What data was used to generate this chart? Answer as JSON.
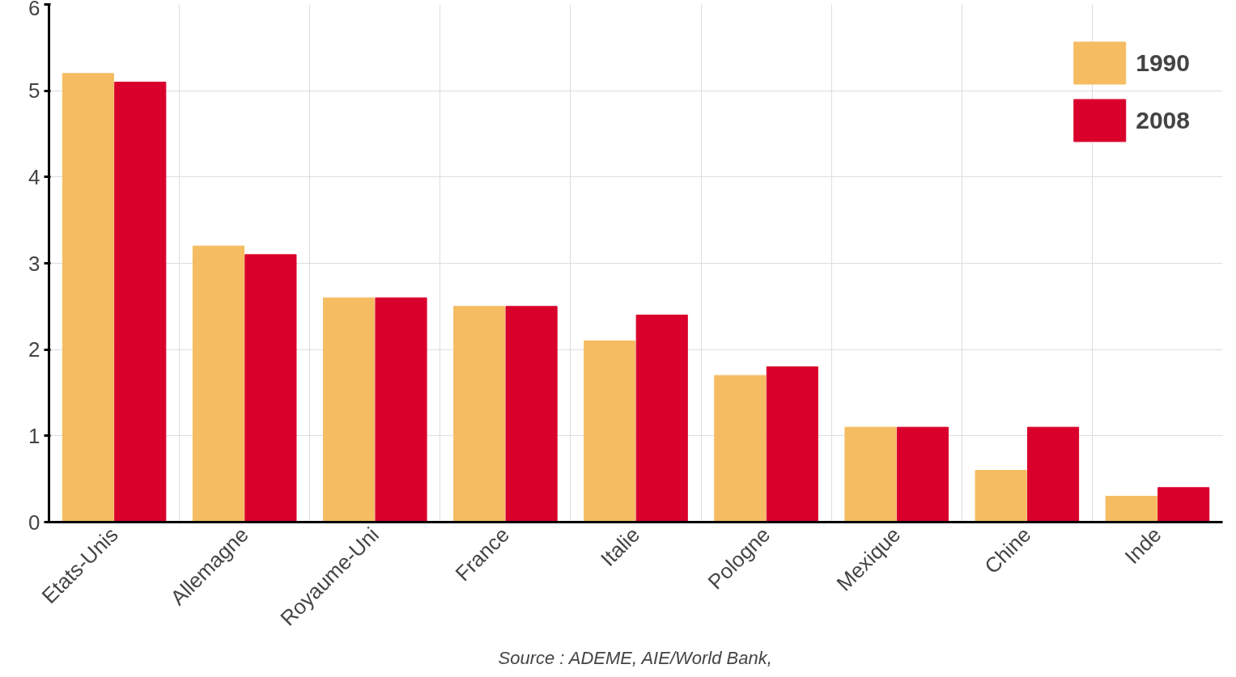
{
  "chart_data": {
    "type": "bar",
    "categories": [
      "Etats-Unis",
      "Allemagne",
      "Royaume-Uni",
      "France",
      "Italie",
      "Pologne",
      "Mexique",
      "Chine",
      "Inde"
    ],
    "series": [
      {
        "name": "1990",
        "color": "#f5bc62",
        "values": [
          5.2,
          3.2,
          2.6,
          2.5,
          2.1,
          1.7,
          1.1,
          0.6,
          0.3
        ]
      },
      {
        "name": "2008",
        "color": "#d9002b",
        "values": [
          5.1,
          3.1,
          2.6,
          2.5,
          2.4,
          1.8,
          1.1,
          1.1,
          0.4
        ]
      }
    ],
    "ylim": [
      0,
      6
    ],
    "yticks": [
      0,
      1,
      2,
      3,
      4,
      5,
      6
    ],
    "grid": true,
    "legend": "top right",
    "annotations": [
      "Source : ADEME, AIE/World Bank,"
    ]
  }
}
